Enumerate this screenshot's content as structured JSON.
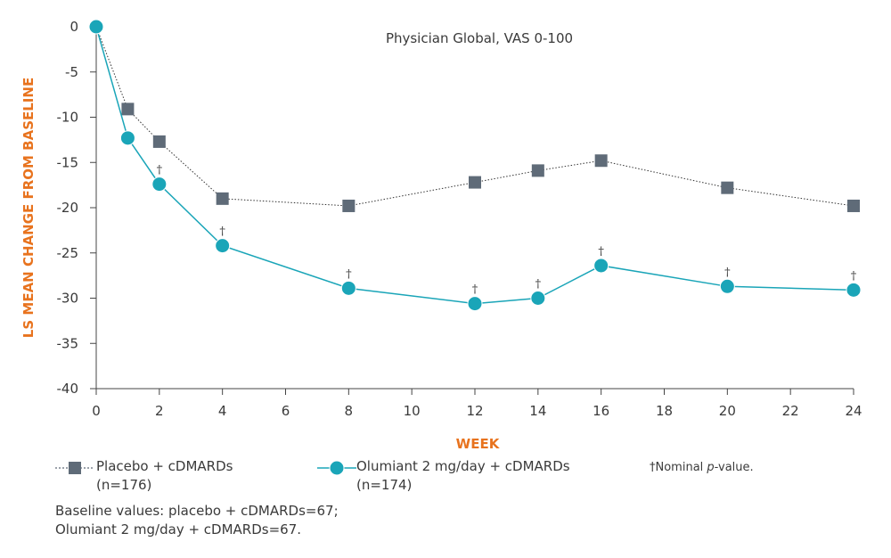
{
  "chart_data": {
    "type": "line",
    "title": "Physician Global, VAS 0-100",
    "xlabel": "WEEK",
    "ylabel": "LS MEAN CHANGE FROM BASELINE",
    "xlim": [
      0,
      24
    ],
    "ylim": [
      -40,
      0
    ],
    "x_ticks": [
      0,
      2,
      4,
      6,
      8,
      10,
      12,
      14,
      16,
      18,
      20,
      22,
      24
    ],
    "y_ticks": [
      0,
      -5,
      -10,
      -15,
      -20,
      -25,
      -30,
      -35,
      -40
    ],
    "grid": false,
    "series": [
      {
        "name": "Placebo + cDMARDs (n=176)",
        "marker": "square",
        "line_style": "dotted",
        "color": "#5f6b78",
        "x": [
          0,
          1,
          2,
          4,
          8,
          12,
          14,
          16,
          20,
          24
        ],
        "y": [
          0,
          -9.1,
          -12.7,
          -19.0,
          -19.8,
          -17.2,
          -15.9,
          -14.8,
          -17.8,
          -19.8
        ]
      },
      {
        "name": "Olumiant 2 mg/day + cDMARDs (n=174)",
        "marker": "circle",
        "line_style": "solid",
        "color": "#1aa5b8",
        "x": [
          0,
          1,
          2,
          4,
          8,
          12,
          14,
          16,
          20,
          24
        ],
        "y": [
          0,
          -12.3,
          -17.4,
          -24.2,
          -28.9,
          -30.6,
          -30.0,
          -26.4,
          -28.7,
          -29.1
        ],
        "annotations": [
          {
            "x": 2,
            "text": "†"
          },
          {
            "x": 4,
            "text": "†"
          },
          {
            "x": 8,
            "text": "†"
          },
          {
            "x": 12,
            "text": "†"
          },
          {
            "x": 14,
            "text": "†"
          },
          {
            "x": 16,
            "text": "†"
          },
          {
            "x": 20,
            "text": "†"
          },
          {
            "x": 24,
            "text": "†"
          }
        ]
      }
    ],
    "legend": {
      "placebo_line1": "Placebo + cDMARDs",
      "placebo_line2": "(n=176)",
      "olumiant_line1": "Olumiant 2 mg/day + cDMARDs",
      "olumiant_line2": "(n=174)"
    },
    "footnote_prefix": "†Nominal ",
    "footnote_italic": "p",
    "footnote_suffix": "-value.",
    "baseline_line1": "Baseline values: placebo + cDMARDs=67;",
    "baseline_line2": "Olumiant 2 mg/day + cDMARDs=67.",
    "colors": {
      "axis_title": "#e8731e",
      "placebo": "#5f6b78",
      "olumiant": "#1aa5b8",
      "axis": "#444444"
    }
  }
}
